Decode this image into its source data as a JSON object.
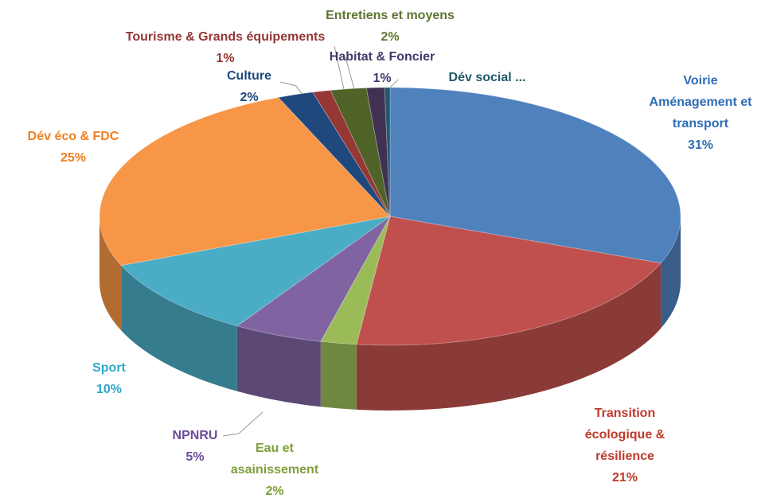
{
  "chart_data": {
    "type": "pie3d",
    "categories": [
      "Voirie Aménagement et transport",
      "Transition écologique & résilience",
      "Eau et asainissement",
      "NPNRU",
      "Sport",
      "Dév éco & FDC",
      "Culture",
      "Tourisme & Grands équipements",
      "Entretiens et moyens",
      "Habitat & Foncier",
      "Dév social ..."
    ],
    "values": [
      31,
      21,
      2,
      5,
      10,
      25,
      2,
      1,
      2,
      1,
      0.3
    ],
    "value_labels": [
      "31%",
      "21%",
      "2%",
      "5%",
      "10%",
      "25%",
      "2%",
      "1%",
      "2%",
      "1%",
      null
    ],
    "colors": [
      "#4f81bd",
      "#c0504d",
      "#9bbb59",
      "#8064a2",
      "#4bacc6",
      "#f79646",
      "#1f497d",
      "#953735",
      "#4f6228",
      "#403152",
      "#215968"
    ],
    "label_colors": [
      "#2e6db4",
      "#c0392b",
      "#7ea03a",
      "#6b4c9a",
      "#2ea7c7",
      "#f07f1e",
      "#1f497d",
      "#943634",
      "#5f7530",
      "#3f3a6a",
      "#215968"
    ]
  }
}
